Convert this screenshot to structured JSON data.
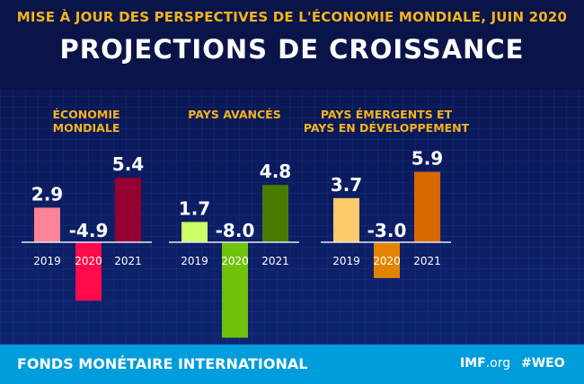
{
  "header": {
    "subtitle": "MISE À JOUR DES PERSPECTIVES DE L'ÉCONOMIE MONDIALE, JUIN 2020",
    "title": "PROJECTIONS DE CROISSANCE"
  },
  "footer": {
    "organization": "FONDS MONÉTAIRE INTERNATIONAL",
    "site_bold": "IMF",
    "site_rest": ".org",
    "hashtag": "#WEO"
  },
  "chart_data": [
    {
      "type": "bar",
      "title": [
        "ÉCONOMIE",
        "MONDIALE"
      ],
      "categories": [
        "2019",
        "2020",
        "2021"
      ],
      "values": [
        2.9,
        -4.9,
        5.4
      ],
      "labels": [
        "2.9",
        "-4.9",
        "5.4"
      ],
      "colors": [
        "#ff8396",
        "#ff0a4b",
        "#950030"
      ]
    },
    {
      "type": "bar",
      "title": [
        "PAYS AVANCÉS"
      ],
      "categories": [
        "2019",
        "2020",
        "2021"
      ],
      "values": [
        1.7,
        -8.0,
        4.8
      ],
      "labels": [
        "1.7",
        "-8.0",
        "4.8"
      ],
      "colors": [
        "#ccfd68",
        "#71c20a",
        "#4a7b00"
      ]
    },
    {
      "type": "bar",
      "title": [
        "PAYS ÉMERGENTS ET",
        "PAYS EN DÉVELOPPEMENT"
      ],
      "categories": [
        "2019",
        "2020",
        "2021"
      ],
      "values": [
        3.7,
        -3.0,
        5.9
      ],
      "labels": [
        "3.7",
        "-3.0",
        "5.9"
      ],
      "colors": [
        "#fdca6a",
        "#e38300",
        "#d86700"
      ]
    }
  ]
}
